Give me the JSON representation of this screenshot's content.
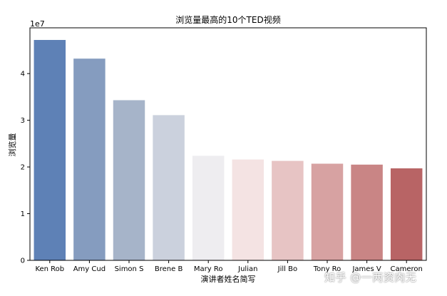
{
  "chart_data": {
    "type": "bar",
    "title": "浏览量最高的10个TED视频",
    "xlabel": "演讲者姓名简写",
    "ylabel": "浏览量",
    "offset_label": "1e7",
    "categories": [
      "Ken Rob",
      "Amy Cud",
      "Simon S",
      "Brene B",
      "Mary Ro",
      "Julian",
      "Jill Bo",
      "Tony Ro",
      "James V",
      "Cameron"
    ],
    "values": [
      4.72,
      4.32,
      3.43,
      3.11,
      2.24,
      2.16,
      2.13,
      2.07,
      2.05,
      1.97
    ],
    "value_scale": 10000000,
    "ylim": [
      0,
      4.98
    ],
    "yticks": [
      0,
      1,
      2,
      3,
      4
    ],
    "grid": false,
    "colors": [
      "#5e81b6",
      "#859cbf",
      "#a6b4c9",
      "#cbd1dd",
      "#eeedf0",
      "#f4e3e3",
      "#e7c4c4",
      "#d7a2a2",
      "#c98585",
      "#b86465"
    ]
  },
  "watermark": "知乎 @一两资肉无"
}
